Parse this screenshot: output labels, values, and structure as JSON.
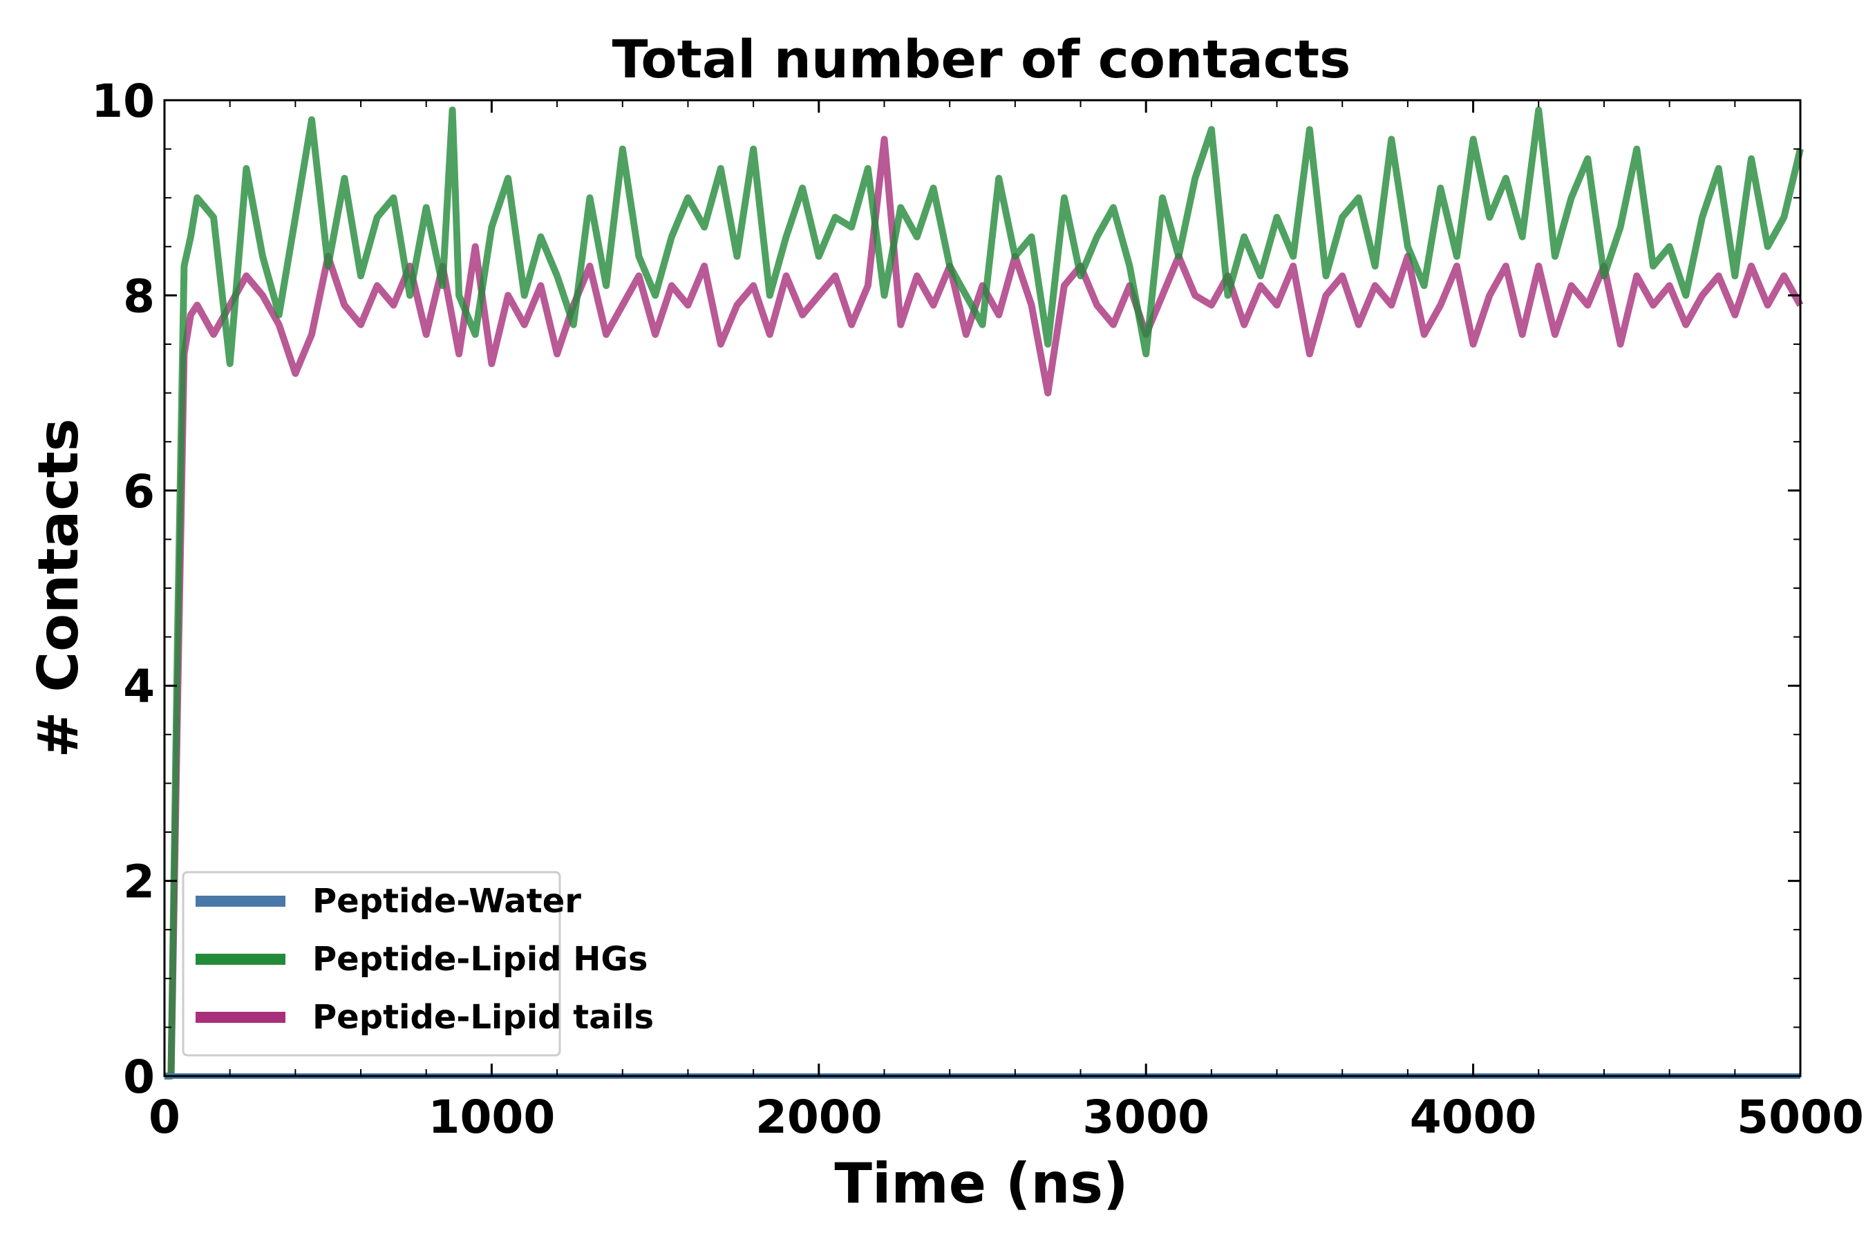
{
  "chart_data": {
    "type": "line",
    "title": "Total number of contacts",
    "xlabel": "Time (ns)",
    "ylabel": "# Contacts",
    "xlim": [
      0,
      5000
    ],
    "ylim": [
      0,
      10
    ],
    "xticks": [
      0,
      1000,
      2000,
      3000,
      4000,
      5000
    ],
    "yticks": [
      0,
      2,
      4,
      6,
      8,
      10
    ],
    "grid": false,
    "legend_position": "lower-left",
    "series": [
      {
        "name": "Peptide-Water",
        "color": "#4a78a8",
        "x": [
          0,
          5000
        ],
        "y": [
          0,
          0
        ]
      },
      {
        "name": "Peptide-Lipid HGs",
        "color": "#238a3a",
        "x": [
          0,
          20,
          40,
          60,
          80,
          100,
          150,
          200,
          250,
          300,
          350,
          400,
          450,
          500,
          550,
          600,
          650,
          700,
          750,
          800,
          850,
          880,
          900,
          950,
          1000,
          1050,
          1100,
          1150,
          1200,
          1250,
          1300,
          1350,
          1400,
          1450,
          1500,
          1550,
          1600,
          1650,
          1700,
          1750,
          1800,
          1850,
          1900,
          1950,
          2000,
          2050,
          2100,
          2150,
          2200,
          2250,
          2300,
          2350,
          2400,
          2450,
          2500,
          2550,
          2600,
          2650,
          2700,
          2750,
          2800,
          2850,
          2900,
          2950,
          3000,
          3050,
          3100,
          3150,
          3200,
          3250,
          3300,
          3350,
          3400,
          3450,
          3500,
          3550,
          3600,
          3650,
          3700,
          3750,
          3800,
          3850,
          3900,
          3950,
          4000,
          4050,
          4100,
          4150,
          4200,
          4250,
          4300,
          4350,
          4400,
          4450,
          4500,
          4550,
          4600,
          4650,
          4700,
          4750,
          4800,
          4850,
          4900,
          4950,
          5000
        ],
        "y": [
          0,
          0,
          4.5,
          8.3,
          8.6,
          9.0,
          8.8,
          7.3,
          9.3,
          8.4,
          7.8,
          8.8,
          9.8,
          8.3,
          9.2,
          8.2,
          8.8,
          9.0,
          8.0,
          8.9,
          8.1,
          9.9,
          8.0,
          7.6,
          8.7,
          9.2,
          8.0,
          8.6,
          8.2,
          7.7,
          9.0,
          8.1,
          9.5,
          8.4,
          8.0,
          8.6,
          9.0,
          8.7,
          9.3,
          8.4,
          9.5,
          8.0,
          8.6,
          9.1,
          8.4,
          8.8,
          8.7,
          9.3,
          8.0,
          8.9,
          8.6,
          9.1,
          8.3,
          8.0,
          7.7,
          9.2,
          8.4,
          8.6,
          7.5,
          9.0,
          8.2,
          8.6,
          8.9,
          8.3,
          7.4,
          9.0,
          8.4,
          9.2,
          9.7,
          8.0,
          8.6,
          8.2,
          8.8,
          8.4,
          9.7,
          8.2,
          8.8,
          9.0,
          8.3,
          9.6,
          8.5,
          8.1,
          9.1,
          8.4,
          9.6,
          8.8,
          9.2,
          8.6,
          9.9,
          8.4,
          9.0,
          9.4,
          8.2,
          8.7,
          9.5,
          8.3,
          8.5,
          8.0,
          8.8,
          9.3,
          8.2,
          9.4,
          8.5,
          8.8,
          9.5
        ]
      },
      {
        "name": "Peptide-Lipid tails",
        "color": "#a8307a",
        "x": [
          0,
          20,
          40,
          60,
          80,
          100,
          150,
          200,
          250,
          300,
          350,
          400,
          450,
          500,
          550,
          600,
          650,
          700,
          750,
          800,
          850,
          900,
          950,
          1000,
          1050,
          1100,
          1150,
          1200,
          1250,
          1300,
          1350,
          1400,
          1450,
          1500,
          1550,
          1600,
          1650,
          1700,
          1750,
          1800,
          1850,
          1900,
          1950,
          2000,
          2050,
          2100,
          2150,
          2200,
          2250,
          2300,
          2350,
          2400,
          2450,
          2500,
          2550,
          2600,
          2650,
          2700,
          2750,
          2800,
          2850,
          2900,
          2950,
          3000,
          3050,
          3100,
          3150,
          3200,
          3250,
          3300,
          3350,
          3400,
          3450,
          3500,
          3550,
          3600,
          3650,
          3700,
          3750,
          3800,
          3850,
          3900,
          3950,
          4000,
          4050,
          4100,
          4150,
          4200,
          4250,
          4300,
          4350,
          4400,
          4450,
          4500,
          4550,
          4600,
          4650,
          4700,
          4750,
          4800,
          4850,
          4900,
          4950,
          5000
        ],
        "y": [
          0,
          0,
          3.8,
          7.4,
          7.8,
          7.9,
          7.6,
          7.9,
          8.2,
          8.0,
          7.7,
          7.2,
          7.6,
          8.4,
          7.9,
          7.7,
          8.1,
          7.9,
          8.3,
          7.6,
          8.3,
          7.4,
          8.5,
          7.3,
          8.0,
          7.7,
          8.1,
          7.4,
          7.9,
          8.3,
          7.6,
          7.9,
          8.2,
          7.6,
          8.1,
          7.9,
          8.3,
          7.5,
          7.9,
          8.1,
          7.6,
          8.2,
          7.8,
          8.0,
          8.2,
          7.7,
          8.1,
          9.6,
          7.7,
          8.2,
          7.9,
          8.3,
          7.6,
          8.1,
          7.8,
          8.4,
          7.9,
          7.0,
          8.1,
          8.3,
          7.9,
          7.7,
          8.1,
          7.6,
          8.0,
          8.4,
          8.0,
          7.9,
          8.2,
          7.7,
          8.1,
          7.9,
          8.3,
          7.4,
          8.0,
          8.2,
          7.7,
          8.1,
          7.9,
          8.4,
          7.6,
          7.9,
          8.3,
          7.5,
          8.0,
          8.3,
          7.6,
          8.3,
          7.6,
          8.1,
          7.9,
          8.3,
          7.5,
          8.2,
          7.9,
          8.1,
          7.7,
          8.0,
          8.2,
          7.8,
          8.3,
          7.9,
          8.2,
          7.9
        ]
      }
    ]
  }
}
